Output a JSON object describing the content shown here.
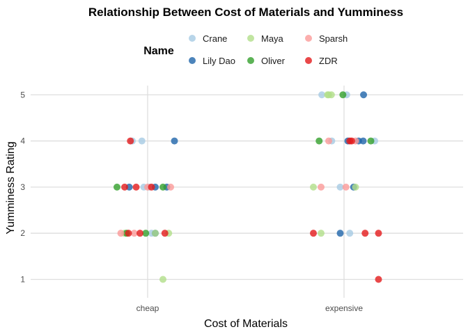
{
  "chart_data": {
    "type": "scatter",
    "title": "Relationship Between Cost of Materials and Yumminess",
    "xlabel": "Cost of Materials",
    "ylabel": "Yumminess Rating",
    "categories": [
      "cheap",
      "expensive"
    ],
    "ylim": [
      0.6,
      5.2
    ],
    "yticks": [
      1,
      2,
      3,
      4,
      5
    ],
    "grid": true,
    "legend": {
      "title": "Name",
      "position": "top"
    },
    "series": [
      {
        "name": "Crane",
        "color": "#a6cae3",
        "points": [
          {
            "x": "cheap",
            "jitter": -0.4,
            "y": 4
          },
          {
            "x": "cheap",
            "jitter": -0.15,
            "y": 4
          },
          {
            "x": "cheap",
            "jitter": -0.1,
            "y": 3
          },
          {
            "x": "cheap",
            "jitter": 0.05,
            "y": 3
          },
          {
            "x": "cheap",
            "jitter": 0.1,
            "y": 2
          },
          {
            "x": "expensive",
            "jitter": -0.58,
            "y": 5
          },
          {
            "x": "expensive",
            "jitter": 0.07,
            "y": 5
          },
          {
            "x": "expensive",
            "jitter": -0.32,
            "y": 4
          },
          {
            "x": "expensive",
            "jitter": 0.8,
            "y": 4
          },
          {
            "x": "expensive",
            "jitter": -0.1,
            "y": 3
          },
          {
            "x": "expensive",
            "jitter": 0.15,
            "y": 2
          }
        ]
      },
      {
        "name": "Lily Dao",
        "color": "#1f65aa",
        "points": [
          {
            "x": "cheap",
            "jitter": 0.7,
            "y": 4
          },
          {
            "x": "cheap",
            "jitter": -0.48,
            "y": 3
          },
          {
            "x": "cheap",
            "jitter": 0.2,
            "y": 3
          },
          {
            "x": "cheap",
            "jitter": 0.5,
            "y": 3
          },
          {
            "x": "cheap",
            "jitter": 0.2,
            "y": 2
          },
          {
            "x": "expensive",
            "jitter": 0.51,
            "y": 5
          },
          {
            "x": "expensive",
            "jitter": 0.1,
            "y": 4
          },
          {
            "x": "expensive",
            "jitter": 0.38,
            "y": 4
          },
          {
            "x": "expensive",
            "jitter": 0.5,
            "y": 4
          },
          {
            "x": "expensive",
            "jitter": 0.25,
            "y": 3
          },
          {
            "x": "expensive",
            "jitter": -0.1,
            "y": 2
          }
        ]
      },
      {
        "name": "Maya",
        "color": "#b2df8a",
        "points": [
          {
            "x": "cheap",
            "jitter": -0.6,
            "y": 2
          },
          {
            "x": "cheap",
            "jitter": 0.2,
            "y": 2
          },
          {
            "x": "cheap",
            "jitter": 0.55,
            "y": 2
          },
          {
            "x": "cheap",
            "jitter": 0.4,
            "y": 1
          },
          {
            "x": "expensive",
            "jitter": -0.43,
            "y": 5
          },
          {
            "x": "expensive",
            "jitter": -0.33,
            "y": 5
          },
          {
            "x": "expensive",
            "jitter": -0.4,
            "y": 5
          },
          {
            "x": "expensive",
            "jitter": -0.8,
            "y": 3
          },
          {
            "x": "expensive",
            "jitter": 0.3,
            "y": 3
          },
          {
            "x": "expensive",
            "jitter": -0.6,
            "y": 2
          }
        ]
      },
      {
        "name": "Oliver",
        "color": "#33a02c",
        "points": [
          {
            "x": "cheap",
            "jitter": -0.8,
            "y": 3
          },
          {
            "x": "cheap",
            "jitter": 0.4,
            "y": 3
          },
          {
            "x": "cheap",
            "jitter": -0.55,
            "y": 2
          },
          {
            "x": "cheap",
            "jitter": -0.05,
            "y": 2
          },
          {
            "x": "expensive",
            "jitter": -0.03,
            "y": 5
          },
          {
            "x": "expensive",
            "jitter": -0.65,
            "y": 4
          },
          {
            "x": "expensive",
            "jitter": 0.7,
            "y": 4
          }
        ]
      },
      {
        "name": "Sparsh",
        "color": "#fb9a99",
        "points": [
          {
            "x": "cheap",
            "jitter": 0.0,
            "y": 3
          },
          {
            "x": "cheap",
            "jitter": 0.6,
            "y": 3
          },
          {
            "x": "cheap",
            "jitter": -0.7,
            "y": 2
          },
          {
            "x": "cheap",
            "jitter": -0.35,
            "y": 2
          },
          {
            "x": "expensive",
            "jitter": -0.4,
            "y": 4
          },
          {
            "x": "expensive",
            "jitter": 0.3,
            "y": 4
          },
          {
            "x": "expensive",
            "jitter": -0.6,
            "y": 3
          },
          {
            "x": "expensive",
            "jitter": 0.05,
            "y": 3
          }
        ]
      },
      {
        "name": "ZDR",
        "color": "#e31a1c",
        "points": [
          {
            "x": "cheap",
            "jitter": -0.45,
            "y": 4
          },
          {
            "x": "cheap",
            "jitter": -0.6,
            "y": 3
          },
          {
            "x": "cheap",
            "jitter": -0.3,
            "y": 3
          },
          {
            "x": "cheap",
            "jitter": 0.1,
            "y": 3
          },
          {
            "x": "cheap",
            "jitter": -0.5,
            "y": 2
          },
          {
            "x": "cheap",
            "jitter": -0.2,
            "y": 2
          },
          {
            "x": "cheap",
            "jitter": 0.45,
            "y": 2
          },
          {
            "x": "expensive",
            "jitter": 0.15,
            "y": 4
          },
          {
            "x": "expensive",
            "jitter": 0.2,
            "y": 4
          },
          {
            "x": "expensive",
            "jitter": -0.8,
            "y": 2
          },
          {
            "x": "expensive",
            "jitter": 0.55,
            "y": 2
          },
          {
            "x": "expensive",
            "jitter": 0.9,
            "y": 2
          },
          {
            "x": "expensive",
            "jitter": 0.9,
            "y": 1
          }
        ]
      }
    ]
  }
}
